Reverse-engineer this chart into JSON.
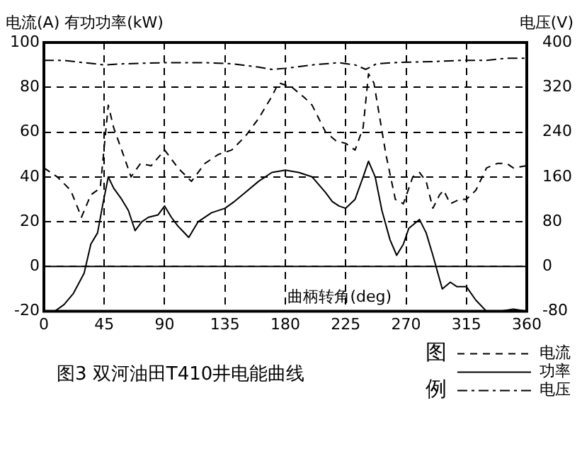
{
  "chart_data": {
    "type": "line",
    "title": "图3 双河油田T410井电能曲线",
    "xlabel": "曲柄转角(deg)",
    "ylabel": "电流(A) 有功功率(kW)",
    "y2label": "电压(V)",
    "legend_title": "图例",
    "legend": "bottom right",
    "grid": true,
    "marker": "none",
    "xlim": [
      0,
      360
    ],
    "xticks": [
      0,
      45,
      90,
      135,
      180,
      225,
      270,
      315,
      360
    ],
    "ylim": [
      -20,
      100
    ],
    "yticks": [
      -20,
      0,
      20,
      40,
      60,
      80,
      100
    ],
    "y2lim": [
      -80,
      400
    ],
    "y2ticks": [
      -80,
      0,
      80,
      160,
      240,
      320,
      400
    ],
    "series": [
      {
        "name": "电流",
        "color": "#000000",
        "line_style": "dashed",
        "x": [
          0,
          10,
          20,
          28,
          35,
          42,
          48,
          52,
          58,
          65,
          72,
          80,
          90,
          100,
          110,
          120,
          130,
          140,
          150,
          160,
          170,
          175,
          185,
          195,
          200,
          210,
          218,
          225,
          232,
          238,
          242,
          246,
          255,
          262,
          268,
          275,
          280,
          285,
          290,
          295,
          298,
          303,
          310,
          315,
          322,
          330,
          338,
          345,
          350,
          360
        ],
        "values": [
          44,
          40,
          34,
          22,
          32,
          35,
          72,
          62,
          52,
          40,
          46,
          45,
          52,
          44,
          38,
          46,
          50,
          52,
          58,
          66,
          76,
          82,
          80,
          75,
          72,
          60,
          56,
          55,
          52,
          62,
          86,
          82,
          50,
          30,
          28,
          40,
          42,
          38,
          26,
          32,
          34,
          28,
          30,
          30,
          34,
          44,
          46,
          46,
          44,
          45
        ]
      },
      {
        "name": "功率",
        "color": "#000000",
        "line_style": "solid",
        "x": [
          0,
          8,
          15,
          22,
          30,
          35,
          40,
          44,
          48,
          52,
          58,
          63,
          68,
          73,
          78,
          85,
          90,
          95,
          100,
          108,
          115,
          125,
          135,
          142,
          150,
          160,
          170,
          180,
          190,
          200,
          210,
          215,
          220,
          225,
          232,
          238,
          242,
          247,
          252,
          258,
          263,
          268,
          272,
          280,
          285,
          290,
          297,
          303,
          308,
          315,
          322,
          330,
          340,
          350,
          360
        ],
        "values": [
          -20,
          -20,
          -17,
          -12,
          -3,
          10,
          15,
          28,
          40,
          35,
          30,
          25,
          16,
          20,
          22,
          23,
          27,
          22,
          18,
          13,
          20,
          24,
          26,
          29,
          33,
          38,
          42,
          43,
          42,
          40,
          33,
          29,
          27,
          26,
          30,
          40,
          47,
          40,
          25,
          12,
          5,
          10,
          17,
          21,
          15,
          5,
          -10,
          -7,
          -9,
          -9,
          -15,
          -20,
          -20,
          -19,
          -20
        ]
      },
      {
        "name": "电压",
        "color": "#000000",
        "line_style": "dashdot",
        "axis": "y2",
        "x": [
          0,
          15,
          30,
          45,
          60,
          90,
          120,
          140,
          160,
          170,
          180,
          200,
          220,
          232,
          240,
          248,
          260,
          290,
          310,
          330,
          345,
          360
        ],
        "values": [
          368,
          368,
          364,
          360,
          362,
          364,
          364,
          362,
          356,
          352,
          354,
          360,
          364,
          360,
          352,
          362,
          364,
          366,
          368,
          368,
          372,
          372
        ]
      }
    ]
  }
}
